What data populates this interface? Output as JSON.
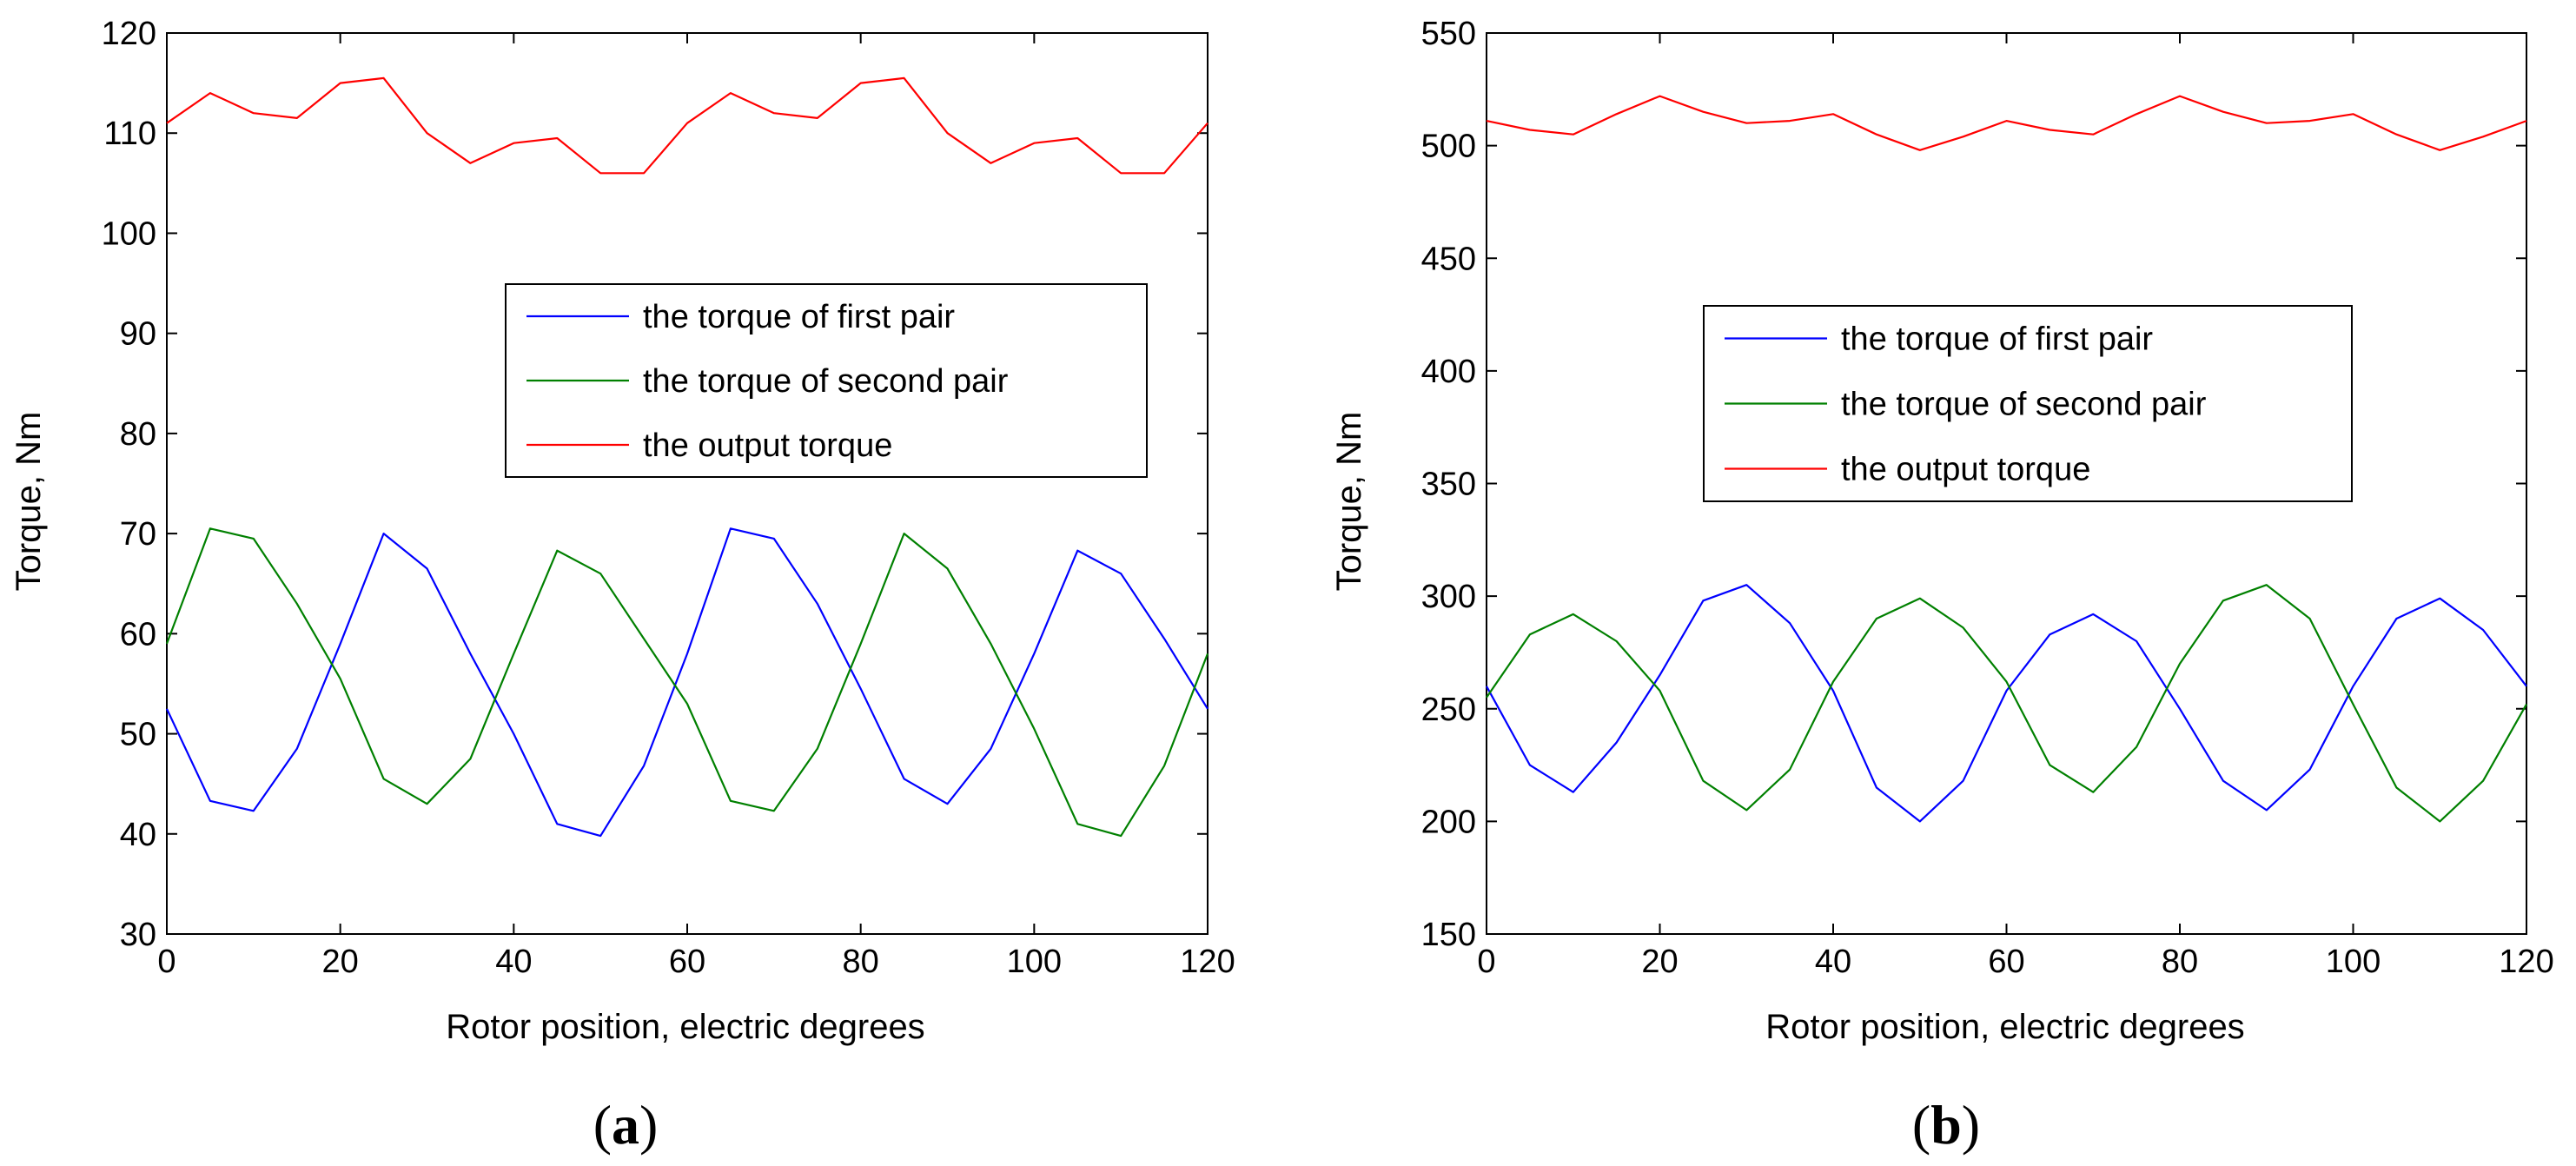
{
  "colors": {
    "background": "#ffffff",
    "axis": "#000000",
    "first_pair": "#0000ff",
    "second_pair": "#008000",
    "output": "#ff0000"
  },
  "chart_data": [
    {
      "type": "line",
      "panel_label": "(a)",
      "panel_letter": "a",
      "title": "",
      "xlabel": "Rotor position, electric degrees",
      "ylabel": "Torque, Nm",
      "xlim": [
        0,
        120
      ],
      "ylim": [
        30,
        120
      ],
      "xticks": [
        0,
        20,
        40,
        60,
        80,
        100,
        120
      ],
      "yticks": [
        30,
        40,
        50,
        60,
        70,
        80,
        90,
        100,
        110,
        120
      ],
      "grid": false,
      "legend_position": "center-right",
      "x": [
        0,
        5,
        10,
        15,
        20,
        25,
        30,
        35,
        40,
        45,
        50,
        55,
        60,
        65,
        70,
        75,
        80,
        85,
        90,
        95,
        100,
        105,
        110,
        115,
        120
      ],
      "series": [
        {
          "name": "the torque of first pair",
          "color": "#0000ff",
          "values": [
            52.5,
            43.3,
            42.3,
            48.5,
            59.0,
            70.0,
            66.5,
            58.0,
            50.0,
            41.0,
            39.8,
            46.8,
            58.0,
            70.5,
            69.5,
            63.0,
            54.5,
            45.5,
            43.0,
            48.5,
            58.0,
            68.3,
            66.0,
            59.5,
            52.5
          ]
        },
        {
          "name": "the torque of second pair",
          "color": "#008000",
          "values": [
            59.0,
            70.5,
            69.5,
            63.0,
            55.5,
            45.5,
            43.0,
            47.5,
            58.0,
            68.3,
            66.0,
            59.5,
            53.0,
            43.3,
            42.3,
            48.5,
            59.0,
            70.0,
            66.5,
            59.0,
            50.5,
            41.0,
            39.8,
            46.8,
            58.0
          ]
        },
        {
          "name": "the output torque",
          "color": "#ff0000",
          "values": [
            111.0,
            114.0,
            112.0,
            111.5,
            115.0,
            115.5,
            110.0,
            107.0,
            109.0,
            109.5,
            106.0,
            106.0,
            111.0,
            114.0,
            112.0,
            111.5,
            115.0,
            115.5,
            110.0,
            107.0,
            109.0,
            109.5,
            106.0,
            106.0,
            111.0
          ]
        }
      ]
    },
    {
      "type": "line",
      "panel_label": "(b)",
      "panel_letter": "b",
      "title": "",
      "xlabel": "Rotor position, electric degrees",
      "ylabel": "Torque, Nm",
      "xlim": [
        0,
        120
      ],
      "ylim": [
        150,
        550
      ],
      "xticks": [
        0,
        20,
        40,
        60,
        80,
        100,
        120
      ],
      "yticks": [
        150,
        200,
        250,
        300,
        350,
        400,
        450,
        500,
        550
      ],
      "grid": false,
      "legend_position": "center-right",
      "x": [
        0,
        5,
        10,
        15,
        20,
        25,
        30,
        35,
        40,
        45,
        50,
        55,
        60,
        65,
        70,
        75,
        80,
        85,
        90,
        95,
        100,
        105,
        110,
        115,
        120
      ],
      "series": [
        {
          "name": "the torque of first pair",
          "color": "#0000ff",
          "values": [
            260,
            225,
            213,
            235,
            265,
            298,
            305,
            288,
            258,
            215,
            200,
            218,
            258,
            283,
            292,
            280,
            250,
            218,
            205,
            223,
            260,
            290,
            299,
            285,
            260
          ]
        },
        {
          "name": "the torque of second pair",
          "color": "#008000",
          "values": [
            255,
            283,
            292,
            280,
            258,
            218,
            205,
            223,
            262,
            290,
            299,
            286,
            262,
            225,
            213,
            233,
            270,
            298,
            305,
            290,
            252,
            215,
            200,
            218,
            252
          ]
        },
        {
          "name": "the output torque",
          "color": "#ff0000",
          "values": [
            511,
            507,
            505,
            514,
            522,
            515,
            510,
            511,
            514,
            505,
            498,
            504,
            511,
            507,
            505,
            514,
            522,
            515,
            510,
            511,
            514,
            505,
            498,
            504,
            511
          ]
        }
      ]
    }
  ]
}
